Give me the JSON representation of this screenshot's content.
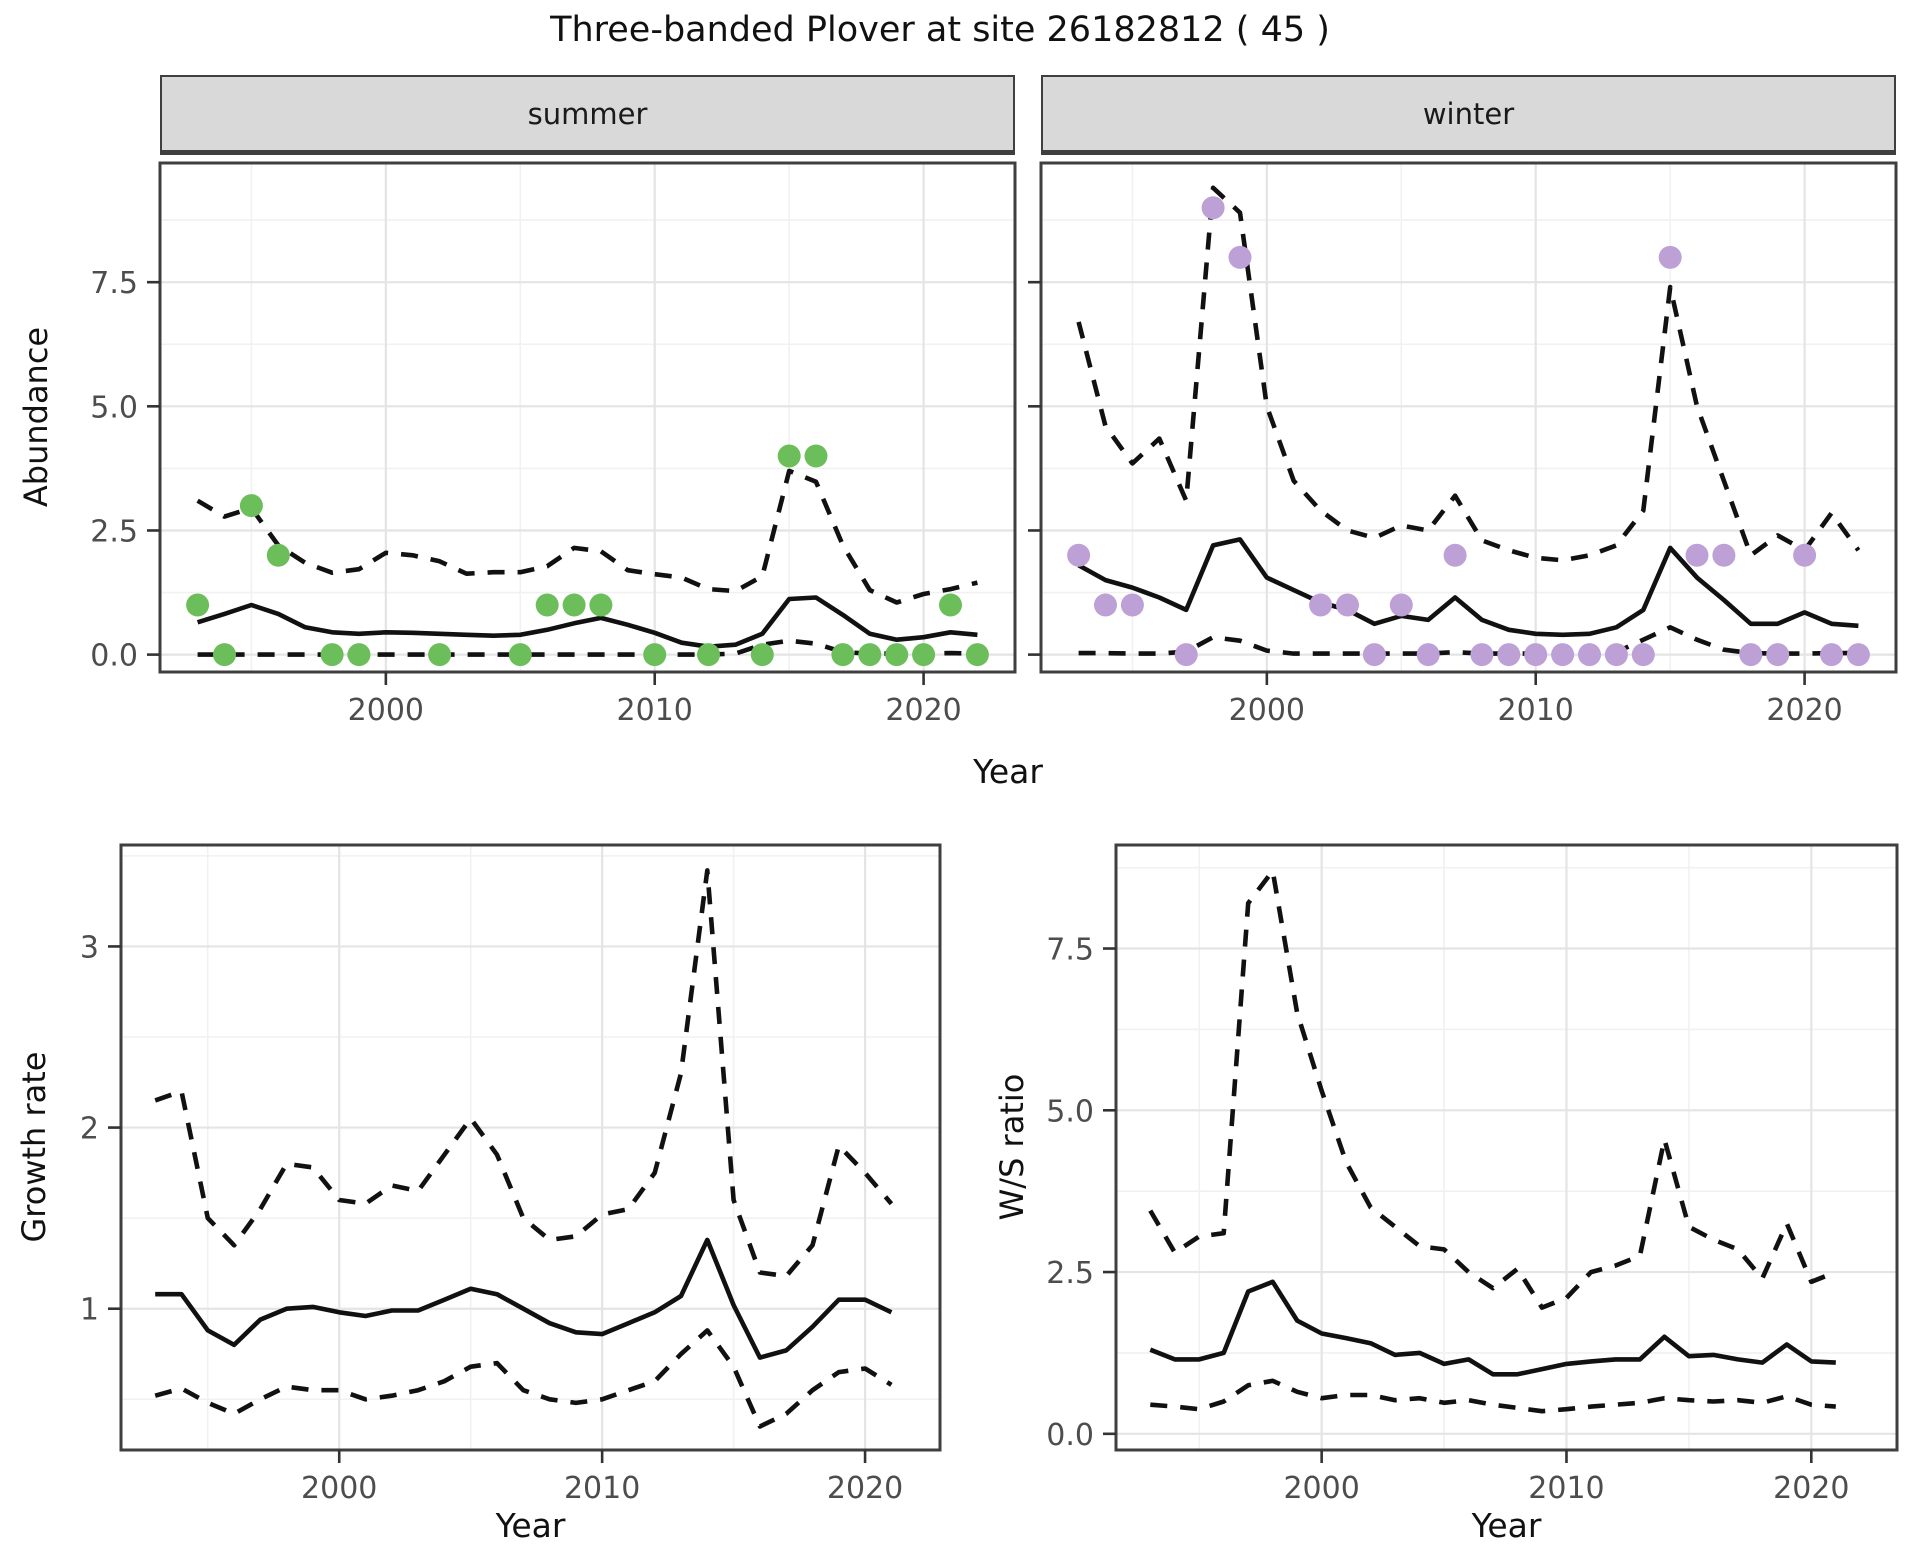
{
  "title": "Three-banded Plover at site 26182812 ( 45 )",
  "colors": {
    "summer_points": "#6cbe5b",
    "winter_points": "#bda0d6",
    "line": "#111111",
    "grid_major": "#e4e4e4",
    "grid_minor": "#f1f1f1",
    "strip_bg": "#d9d9d9",
    "panel_border": "#3f3f3f",
    "tick_text": "#4d4d4d"
  },
  "chart_data": [
    {
      "id": "abundance-summer",
      "type": "line",
      "facet_label": "summer",
      "xlabel": "Year",
      "ylabel": "Abundance",
      "xlim": [
        1991.6,
        2023.4
      ],
      "ylim": [
        -0.35,
        9.9
      ],
      "xticks": [
        2000,
        2010,
        2020
      ],
      "xtick_labels": [
        "2000",
        "2010",
        "2020"
      ],
      "xminor": [
        1995,
        2005,
        2015
      ],
      "yticks": [
        0,
        2.5,
        5,
        7.5
      ],
      "ytick_labels": [
        "0.0",
        "2.5",
        "5.0",
        "7.5"
      ],
      "yminor": [
        1.25,
        3.75,
        6.25,
        8.75
      ],
      "grid": true,
      "legend_position": "none",
      "years": [
        1993,
        1994,
        1995,
        1996,
        1997,
        1998,
        1999,
        2000,
        2001,
        2002,
        2003,
        2004,
        2005,
        2006,
        2007,
        2008,
        2009,
        2010,
        2011,
        2012,
        2013,
        2014,
        2015,
        2016,
        2017,
        2018,
        2019,
        2020,
        2021,
        2022
      ],
      "series": [
        {
          "name": "estimate",
          "style": "solid",
          "values": [
            0.65,
            0.82,
            1.0,
            0.82,
            0.55,
            0.45,
            0.42,
            0.45,
            0.44,
            0.42,
            0.4,
            0.38,
            0.4,
            0.5,
            0.63,
            0.74,
            0.6,
            0.44,
            0.24,
            0.16,
            0.2,
            0.42,
            1.12,
            1.15,
            0.8,
            0.42,
            0.3,
            0.35,
            0.45,
            0.4
          ]
        },
        {
          "name": "upper CI",
          "style": "dashed",
          "values": [
            3.1,
            2.78,
            2.95,
            2.2,
            1.85,
            1.65,
            1.72,
            2.05,
            2.0,
            1.88,
            1.63,
            1.66,
            1.66,
            1.78,
            2.15,
            2.08,
            1.7,
            1.62,
            1.55,
            1.32,
            1.28,
            1.58,
            3.7,
            3.48,
            2.2,
            1.3,
            1.05,
            1.22,
            1.32,
            1.45
          ]
        },
        {
          "name": "lower CI",
          "style": "dashed",
          "values": [
            0.0,
            0.0,
            0.0,
            0.0,
            0.0,
            0.0,
            0.0,
            0.0,
            0.0,
            0.0,
            0.0,
            0.0,
            0.0,
            0.0,
            0.0,
            0.0,
            0.0,
            0.0,
            0.0,
            0.0,
            0.02,
            0.2,
            0.28,
            0.22,
            0.05,
            0.02,
            0.02,
            0.02,
            0.03,
            0.02
          ]
        }
      ],
      "points": {
        "name": "observed summer counts",
        "color_key": "summer_points",
        "years": [
          1993,
          1994,
          1995,
          1996,
          1998,
          1999,
          2002,
          2005,
          2006,
          2007,
          2008,
          2010,
          2012,
          2014,
          2015,
          2016,
          2017,
          2018,
          2019,
          2020,
          2021,
          2022
        ],
        "values": [
          1,
          0,
          3,
          2,
          0,
          0,
          0,
          0,
          1,
          1,
          1,
          0,
          0,
          0,
          4,
          4,
          0,
          0,
          0,
          0,
          1,
          0
        ]
      }
    },
    {
      "id": "abundance-winter",
      "type": "line",
      "facet_label": "winter",
      "xlabel": "Year",
      "ylabel": "Abundance",
      "xlim": [
        1991.6,
        2023.4
      ],
      "ylim": [
        -0.35,
        9.9
      ],
      "xticks": [
        2000,
        2010,
        2020
      ],
      "xtick_labels": [
        "2000",
        "2010",
        "2020"
      ],
      "xminor": [
        1995,
        2005,
        2015
      ],
      "yticks": [
        0,
        2.5,
        5,
        7.5
      ],
      "ytick_labels": [
        "0.0",
        "2.5",
        "5.0",
        "7.5"
      ],
      "yminor": [
        1.25,
        3.75,
        6.25,
        8.75
      ],
      "grid": true,
      "legend_position": "none",
      "hide_ytick_labels": true,
      "years": [
        1993,
        1994,
        1995,
        1996,
        1997,
        1998,
        1999,
        2000,
        2001,
        2002,
        2003,
        2004,
        2005,
        2006,
        2007,
        2008,
        2009,
        2010,
        2011,
        2012,
        2013,
        2014,
        2015,
        2016,
        2017,
        2018,
        2019,
        2020,
        2021,
        2022
      ],
      "series": [
        {
          "name": "estimate",
          "style": "solid",
          "values": [
            1.8,
            1.5,
            1.35,
            1.15,
            0.9,
            2.2,
            2.32,
            1.55,
            1.3,
            1.05,
            0.9,
            0.62,
            0.78,
            0.7,
            1.15,
            0.7,
            0.5,
            0.42,
            0.4,
            0.42,
            0.55,
            0.9,
            2.15,
            1.55,
            1.1,
            0.62,
            0.62,
            0.85,
            0.62,
            0.58
          ]
        },
        {
          "name": "upper CI",
          "style": "dashed",
          "values": [
            6.7,
            4.6,
            3.85,
            4.35,
            3.1,
            9.4,
            8.9,
            5.0,
            3.5,
            2.9,
            2.5,
            2.35,
            2.6,
            2.5,
            3.2,
            2.3,
            2.1,
            1.95,
            1.9,
            2.0,
            2.2,
            2.9,
            7.4,
            5.0,
            3.5,
            2.0,
            2.4,
            2.1,
            2.85,
            2.1
          ]
        },
        {
          "name": "lower CI",
          "style": "dashed",
          "values": [
            0.03,
            0.03,
            0.02,
            0.02,
            0.06,
            0.35,
            0.28,
            0.08,
            0.02,
            0.02,
            0.02,
            0.02,
            0.02,
            0.02,
            0.05,
            0.02,
            0.02,
            0.02,
            0.02,
            0.02,
            0.05,
            0.3,
            0.55,
            0.3,
            0.1,
            0.03,
            0.02,
            0.02,
            0.03,
            0.03
          ]
        }
      ],
      "points": {
        "name": "observed winter counts",
        "color_key": "winter_points",
        "years": [
          1993,
          1994,
          1995,
          1997,
          1998,
          1999,
          2002,
          2003,
          2004,
          2005,
          2006,
          2007,
          2008,
          2009,
          2010,
          2011,
          2012,
          2013,
          2014,
          2015,
          2016,
          2017,
          2018,
          2019,
          2020,
          2021,
          2022
        ],
        "values": [
          2,
          1,
          1,
          0,
          9,
          8,
          1,
          1,
          0,
          1,
          0,
          2,
          0,
          0,
          0,
          0,
          0,
          0,
          0,
          8,
          2,
          2,
          0,
          0,
          2,
          0,
          0
        ]
      }
    },
    {
      "id": "growth-rate",
      "type": "line",
      "facet_label": null,
      "xlabel": "Year",
      "ylabel": "Growth rate",
      "xlim": [
        1991.7,
        2022.85
      ],
      "ylim": [
        0.22,
        3.56
      ],
      "xticks": [
        2000,
        2010,
        2020
      ],
      "xtick_labels": [
        "2000",
        "2010",
        "2020"
      ],
      "xminor": [
        1995,
        2005,
        2015
      ],
      "yticks": [
        1,
        2,
        3
      ],
      "ytick_labels": [
        "1",
        "2",
        "3"
      ],
      "yminor": [
        0.5,
        1.5,
        2.5,
        3.5
      ],
      "grid": true,
      "legend_position": "none",
      "years": [
        1993,
        1994,
        1995,
        1996,
        1997,
        1998,
        1999,
        2000,
        2001,
        2002,
        2003,
        2004,
        2005,
        2006,
        2007,
        2008,
        2009,
        2010,
        2011,
        2012,
        2013,
        2014,
        2015,
        2016,
        2017,
        2018,
        2019,
        2020,
        2021
      ],
      "series": [
        {
          "name": "estimate",
          "style": "solid",
          "values": [
            1.08,
            1.08,
            0.88,
            0.8,
            0.94,
            1.0,
            1.01,
            0.98,
            0.96,
            0.99,
            0.99,
            1.05,
            1.11,
            1.08,
            1.0,
            0.92,
            0.87,
            0.86,
            0.92,
            0.98,
            1.07,
            1.38,
            1.02,
            0.73,
            0.77,
            0.9,
            1.05,
            1.05,
            0.98
          ]
        },
        {
          "name": "upper CI",
          "style": "dashed",
          "values": [
            2.15,
            2.2,
            1.5,
            1.35,
            1.55,
            1.8,
            1.78,
            1.6,
            1.58,
            1.68,
            1.65,
            1.85,
            2.05,
            1.85,
            1.5,
            1.38,
            1.4,
            1.52,
            1.55,
            1.75,
            2.3,
            3.42,
            1.6,
            1.2,
            1.18,
            1.35,
            1.9,
            1.75,
            1.58
          ]
        },
        {
          "name": "lower CI",
          "style": "dashed",
          "values": [
            0.52,
            0.56,
            0.48,
            0.42,
            0.5,
            0.57,
            0.55,
            0.55,
            0.5,
            0.52,
            0.55,
            0.6,
            0.68,
            0.7,
            0.55,
            0.5,
            0.48,
            0.5,
            0.55,
            0.6,
            0.75,
            0.88,
            0.68,
            0.35,
            0.42,
            0.55,
            0.65,
            0.67,
            0.58
          ]
        }
      ],
      "points": null
    },
    {
      "id": "ws-ratio",
      "type": "line",
      "facet_label": null,
      "xlabel": "Year",
      "ylabel": "W/S ratio",
      "xlim": [
        1991.6,
        2023.5
      ],
      "ylim": [
        -0.25,
        9.1
      ],
      "xticks": [
        2000,
        2010,
        2020
      ],
      "xtick_labels": [
        "2000",
        "2010",
        "2020"
      ],
      "xminor": [
        1995,
        2005,
        2015
      ],
      "yticks": [
        0,
        2.5,
        5,
        7.5
      ],
      "ytick_labels": [
        "0.0",
        "2.5",
        "5.0",
        "7.5"
      ],
      "yminor": [
        1.25,
        3.75,
        6.25,
        8.75
      ],
      "grid": true,
      "legend_position": "none",
      "years": [
        1993,
        1994,
        1995,
        1996,
        1997,
        1998,
        1999,
        2000,
        2001,
        2002,
        2003,
        2004,
        2005,
        2006,
        2007,
        2008,
        2009,
        2010,
        2011,
        2012,
        2013,
        2014,
        2015,
        2016,
        2017,
        2018,
        2019,
        2020,
        2021
      ],
      "series": [
        {
          "name": "estimate",
          "style": "solid",
          "values": [
            1.3,
            1.15,
            1.15,
            1.25,
            2.2,
            2.35,
            1.75,
            1.55,
            1.48,
            1.4,
            1.22,
            1.25,
            1.08,
            1.15,
            0.92,
            0.92,
            1.0,
            1.08,
            1.12,
            1.15,
            1.15,
            1.5,
            1.2,
            1.22,
            1.15,
            1.1,
            1.38,
            1.12,
            1.1
          ]
        },
        {
          "name": "upper CI",
          "style": "dashed",
          "values": [
            3.45,
            2.8,
            3.05,
            3.1,
            8.2,
            8.7,
            6.5,
            5.3,
            4.2,
            3.5,
            3.2,
            2.9,
            2.85,
            2.5,
            2.25,
            2.55,
            1.95,
            2.1,
            2.5,
            2.6,
            2.75,
            4.55,
            3.2,
            3.0,
            2.85,
            2.4,
            3.25,
            2.35,
            2.5
          ]
        },
        {
          "name": "lower CI",
          "style": "dashed",
          "values": [
            0.45,
            0.42,
            0.38,
            0.5,
            0.75,
            0.82,
            0.65,
            0.55,
            0.6,
            0.6,
            0.52,
            0.55,
            0.48,
            0.52,
            0.45,
            0.4,
            0.35,
            0.38,
            0.42,
            0.45,
            0.48,
            0.55,
            0.52,
            0.5,
            0.52,
            0.48,
            0.58,
            0.45,
            0.42
          ]
        }
      ],
      "points": null
    }
  ]
}
